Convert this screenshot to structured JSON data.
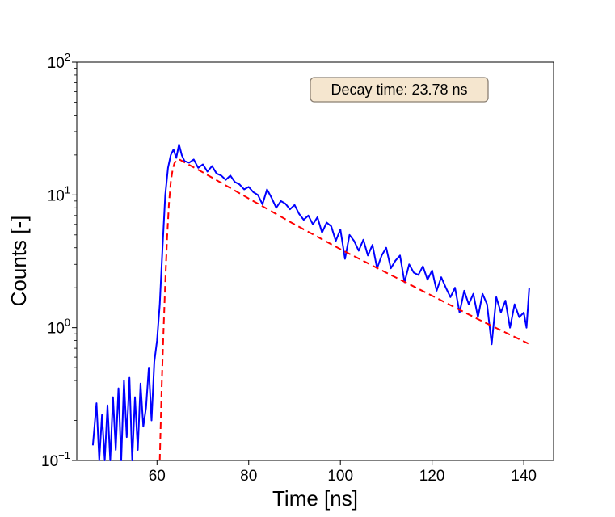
{
  "chart_data": {
    "type": "line",
    "title": "",
    "xlabel": "Time [ns]",
    "ylabel": "Counts [-]",
    "xlim": [
      42.5,
      146.5
    ],
    "ylim": [
      0.1,
      100
    ],
    "y_scale": "log",
    "x_ticks": [
      60,
      80,
      100,
      120,
      140
    ],
    "y_ticks": [
      {
        "value": 0.1,
        "base": "10",
        "exp": "−1"
      },
      {
        "value": 1,
        "base": "10",
        "exp": "0"
      },
      {
        "value": 10,
        "base": "10",
        "exp": "1"
      },
      {
        "value": 100,
        "base": "10",
        "exp": "2"
      }
    ],
    "grid": false,
    "annotation": "Decay time: 23.78 ns",
    "annotation_bg": "#f5e6cf",
    "annotation_border": "#8a7f72",
    "series": [
      {
        "kind": "measured",
        "color": "#0000ff",
        "style": "solid",
        "x": [
          46.0,
          46.8,
          47.4,
          48.0,
          48.6,
          49.2,
          49.8,
          50.4,
          51.0,
          51.6,
          52.2,
          52.8,
          53.4,
          54.0,
          54.6,
          55.2,
          55.8,
          56.4,
          57.0,
          57.6,
          58.2,
          58.8,
          59.4,
          60.0,
          60.6,
          61.2,
          61.8,
          62.4,
          63.0,
          63.6,
          64.2,
          64.8,
          65.4,
          66.0,
          67.0,
          68.0,
          69.0,
          70.0,
          71.0,
          72.0,
          73.0,
          74.0,
          75.0,
          76.0,
          77.0,
          78.0,
          79.0,
          80.0,
          81.0,
          82.0,
          83.0,
          84.0,
          85.0,
          86.0,
          87.0,
          88.0,
          89.0,
          90.0,
          91.0,
          92.0,
          93.0,
          94.0,
          95.0,
          96.0,
          97.0,
          98.0,
          99.0,
          100.0,
          101.0,
          102.0,
          103.0,
          104.0,
          105.0,
          106.0,
          107.0,
          108.0,
          109.0,
          110.0,
          111.0,
          112.0,
          113.0,
          114.0,
          115.0,
          116.0,
          117.0,
          118.0,
          119.0,
          120.0,
          121.0,
          122.0,
          123.0,
          124.0,
          125.0,
          126.0,
          127.0,
          128.0,
          129.0,
          130.0,
          131.0,
          132.0,
          133.0,
          134.0,
          135.0,
          136.0,
          137.0,
          138.0,
          139.0,
          140.0,
          140.6,
          141.2
        ],
        "y": [
          0.13,
          0.27,
          0.1,
          0.22,
          0.1,
          0.26,
          0.1,
          0.3,
          0.12,
          0.35,
          0.1,
          0.4,
          0.15,
          0.42,
          0.1,
          0.3,
          0.12,
          0.38,
          0.18,
          0.25,
          0.5,
          0.2,
          0.55,
          0.8,
          1.5,
          4.0,
          10.0,
          16.0,
          20.0,
          22.0,
          19.0,
          24.0,
          20.0,
          18.0,
          17.5,
          18.5,
          16.0,
          17.0,
          15.0,
          16.5,
          14.5,
          14.0,
          13.0,
          14.0,
          12.5,
          12.0,
          11.0,
          11.5,
          10.5,
          10.0,
          8.5,
          11.0,
          9.5,
          8.0,
          9.0,
          8.6,
          7.8,
          8.4,
          7.2,
          6.5,
          7.0,
          6.0,
          6.8,
          5.2,
          6.2,
          5.8,
          4.5,
          5.5,
          3.3,
          5.0,
          4.5,
          3.8,
          4.6,
          3.5,
          4.2,
          2.8,
          3.5,
          4.0,
          2.8,
          3.2,
          3.5,
          2.2,
          3.0,
          2.6,
          2.5,
          2.9,
          2.3,
          2.7,
          1.9,
          2.4,
          2.0,
          1.7,
          2.0,
          1.3,
          1.9,
          1.5,
          1.8,
          1.2,
          1.8,
          1.5,
          0.75,
          1.7,
          1.3,
          1.6,
          1.0,
          1.5,
          1.2,
          1.3,
          1.0,
          2.0
        ]
      },
      {
        "kind": "fit",
        "color": "#ff0000",
        "style": "dashed",
        "x": [
          60.6,
          61.0,
          61.4,
          61.8,
          62.2,
          62.6,
          63.0,
          63.4,
          63.8,
          64.2,
          64.6,
          65.0,
          70.0,
          80.0,
          90.0,
          100.0,
          110.0,
          120.0,
          130.0,
          141.0
        ],
        "y": [
          0.1,
          0.35,
          0.9,
          2.2,
          4.8,
          8.5,
          12.5,
          15.5,
          17.3,
          18.2,
          18.5,
          18.4,
          14.8,
          9.4,
          6.0,
          3.9,
          2.6,
          1.74,
          1.16,
          0.76
        ]
      }
    ]
  }
}
